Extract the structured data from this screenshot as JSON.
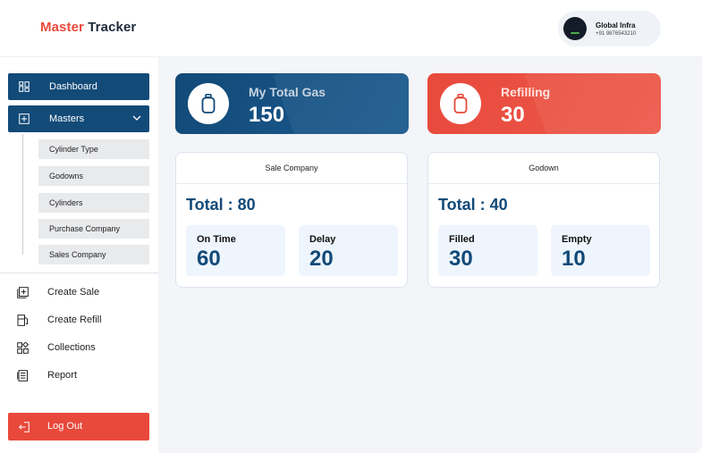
{
  "app": {
    "title_part1": "Master",
    "title_part2": "Tracker"
  },
  "profile": {
    "name": "Global Infra",
    "phone": "+91 9876543210"
  },
  "sidebar": {
    "dashboard_label": "Dashboard",
    "masters_label": "Masters",
    "sub_items": [
      "Cylinder Type",
      "Godowns",
      "Cylinders",
      "Purchase Company",
      "Sales Company"
    ],
    "menu_items": [
      "Create Sale",
      "Create Refill",
      "Collections",
      "Report"
    ],
    "logout_label": "Log Out"
  },
  "stats": [
    {
      "title": "My Total Gas",
      "value": "150"
    },
    {
      "title": "Refilling",
      "value": "30"
    }
  ],
  "cards": [
    {
      "header": "Sale Company",
      "total": "Total : 80",
      "items": [
        {
          "label": "On Time",
          "value": "60"
        },
        {
          "label": "Delay",
          "value": "20"
        }
      ]
    },
    {
      "header": "Godown",
      "total": "Total : 40",
      "items": [
        {
          "label": "Filled",
          "value": "30"
        },
        {
          "label": "Empty",
          "value": "10"
        }
      ]
    }
  ],
  "colors": {
    "primary": "#124a78",
    "accent": "#e8493b",
    "background": "#f3f5f9"
  },
  "icons": {
    "dashboard": "dashboard-icon",
    "masters": "plus-square-icon",
    "create_sale": "create-sale-icon",
    "create_refill": "create-refill-icon",
    "collections": "collections-icon",
    "report": "report-icon",
    "logout": "logout-icon",
    "gas": "cylinder-icon"
  }
}
